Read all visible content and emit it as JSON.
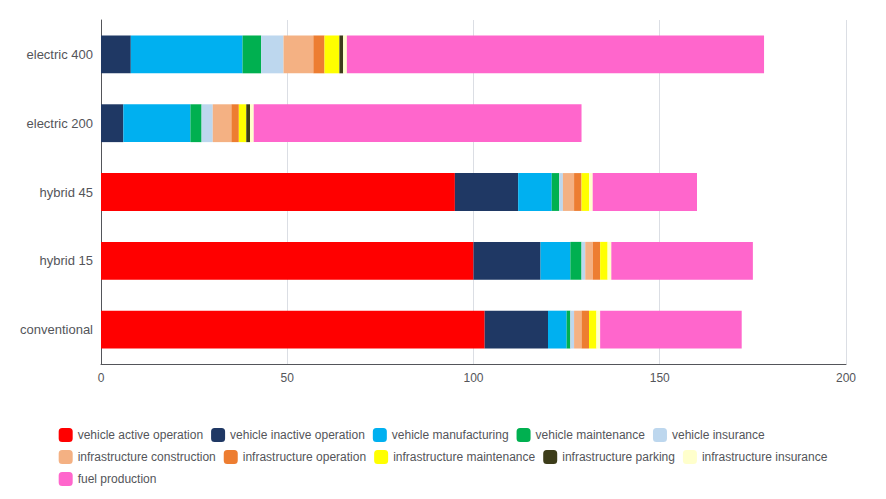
{
  "chart_data": {
    "type": "bar",
    "orientation": "horizontal",
    "stacked": true,
    "categories": [
      "conventional",
      "hybrid 15",
      "hybrid 45",
      "electric 200",
      "electric 400"
    ],
    "series": [
      {
        "name": "vehicle active operation",
        "color": "#FF0000",
        "values": [
          103,
          100,
          95,
          0,
          0
        ]
      },
      {
        "name": "vehicle inactive operation",
        "color": "#1F3864",
        "values": [
          17,
          18,
          17,
          6,
          8
        ]
      },
      {
        "name": "vehicle manufacturing",
        "color": "#00B0F0",
        "values": [
          5,
          8,
          9,
          18,
          30
        ]
      },
      {
        "name": "vehicle maintenance",
        "color": "#00B050",
        "values": [
          1,
          3,
          2,
          3,
          5
        ]
      },
      {
        "name": "vehicle insurance",
        "color": "#BDD7EE",
        "values": [
          1,
          1,
          1,
          3,
          6
        ]
      },
      {
        "name": "infrastructure construction",
        "color": "#F4B183",
        "values": [
          2,
          2,
          3,
          5,
          8
        ]
      },
      {
        "name": "infrastructure operation",
        "color": "#ED7D31",
        "values": [
          2,
          2,
          2,
          2,
          3
        ]
      },
      {
        "name": "infrastructure maintenance",
        "color": "#FFFF00",
        "values": [
          2,
          2,
          2,
          2,
          4
        ]
      },
      {
        "name": "infrastructure parking",
        "color": "#3D3D1A",
        "values": [
          0,
          0,
          0,
          1,
          1
        ]
      },
      {
        "name": "infrastructure insurance",
        "color": "#FFFFCC",
        "values": [
          1,
          1,
          1,
          1,
          1
        ]
      },
      {
        "name": "fuel production",
        "color": "#FF66CC",
        "values": [
          38,
          38,
          28,
          88,
          112
        ]
      }
    ],
    "xlim": [
      0,
      200
    ],
    "xticks": [
      0,
      50,
      100,
      150,
      200
    ],
    "grid": true,
    "legend": "bottom"
  }
}
